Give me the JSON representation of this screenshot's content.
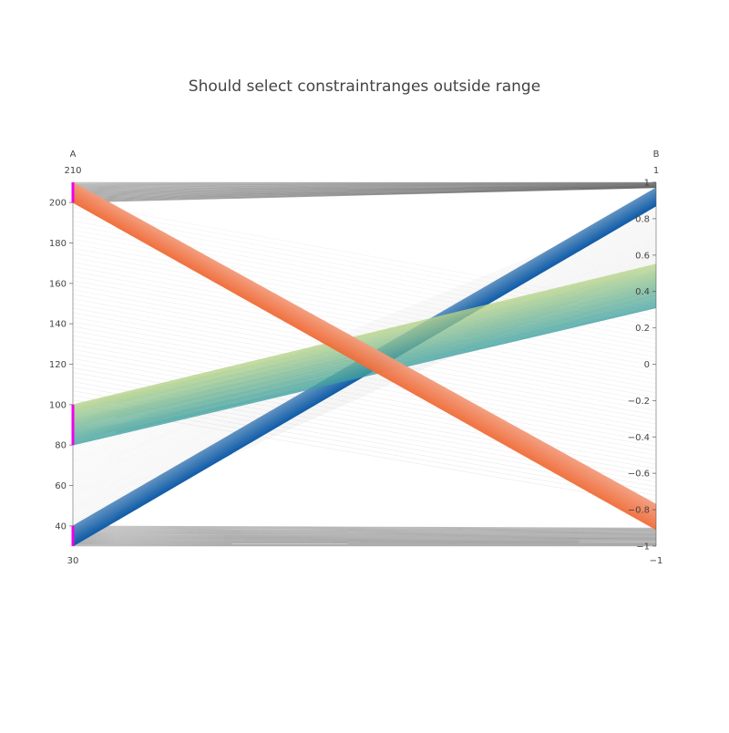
{
  "chart_data": {
    "type": "parcoords",
    "title": "Should select constraintranges outside range",
    "dimensions": [
      {
        "label": "A",
        "range": [
          30,
          210
        ],
        "range_min_label": "30",
        "range_max_label": "210",
        "ticks": [
          {
            "value": 40,
            "label": "40"
          },
          {
            "value": 60,
            "label": "60"
          },
          {
            "value": 80,
            "label": "80"
          },
          {
            "value": 100,
            "label": "100"
          },
          {
            "value": 120,
            "label": "120"
          },
          {
            "value": 140,
            "label": "140"
          },
          {
            "value": 160,
            "label": "160"
          },
          {
            "value": 180,
            "label": "180"
          },
          {
            "value": 200,
            "label": "200"
          }
        ],
        "constraintranges": [
          [
            30,
            40
          ],
          [
            80,
            100
          ],
          [
            200,
            210
          ]
        ]
      },
      {
        "label": "B",
        "range": [
          -1,
          1
        ],
        "range_min_label": "−1",
        "range_max_label": "1",
        "ticks": [
          {
            "value": -1,
            "label": "−1"
          },
          {
            "value": -0.8,
            "label": "−0.8"
          },
          {
            "value": -0.6,
            "label": "−0.6"
          },
          {
            "value": -0.4,
            "label": "−0.4"
          },
          {
            "value": -0.2,
            "label": "−0.2"
          },
          {
            "value": 0,
            "label": "0"
          },
          {
            "value": 0.2,
            "label": "0.2"
          },
          {
            "value": 0.4,
            "label": "0.4"
          },
          {
            "value": 0.6,
            "label": "0.6"
          },
          {
            "value": 0.8,
            "label": "0.8"
          },
          {
            "value": 1,
            "label": "1"
          }
        ]
      }
    ],
    "line_groups": [
      {
        "a_range": [
          30,
          40
        ],
        "b_range": [
          0.87,
          0.97
        ],
        "color_range": [
          "#0d5aa7",
          "#5d90c0"
        ],
        "highlighted": true
      },
      {
        "a_range": [
          80,
          100
        ],
        "b_range": [
          0.31,
          0.55
        ],
        "color_range": [
          "#3c9fa0",
          "#b8d489"
        ],
        "highlighted": true
      },
      {
        "a_range": [
          200,
          210
        ],
        "b_range": [
          -0.91,
          -0.77
        ],
        "color_range": [
          "#f06d3a",
          "#f29b7b"
        ],
        "highlighted": true
      },
      {
        "a_range": [
          30,
          40
        ],
        "b_range": [
          -1.0,
          -0.9
        ],
        "color_range": [
          "#555555",
          "#777777"
        ],
        "highlighted": false
      },
      {
        "a_range": [
          40,
          80
        ],
        "b_range": [
          0.55,
          0.87
        ],
        "color_range": [
          "#cccccc",
          "#dddddd"
        ],
        "highlighted": false
      },
      {
        "a_range": [
          100,
          200
        ],
        "b_range": [
          -0.77,
          0.31
        ],
        "color_range": [
          "#d0d0d0",
          "#e2e2e2"
        ],
        "highlighted": false
      },
      {
        "a_range": [
          200,
          210
        ],
        "b_range": [
          0.97,
          1.0
        ],
        "color_range": [
          "#555555",
          "#777777"
        ],
        "highlighted": false
      }
    ],
    "constraint_color": "#ee00ee",
    "axis_color": "#444444"
  }
}
